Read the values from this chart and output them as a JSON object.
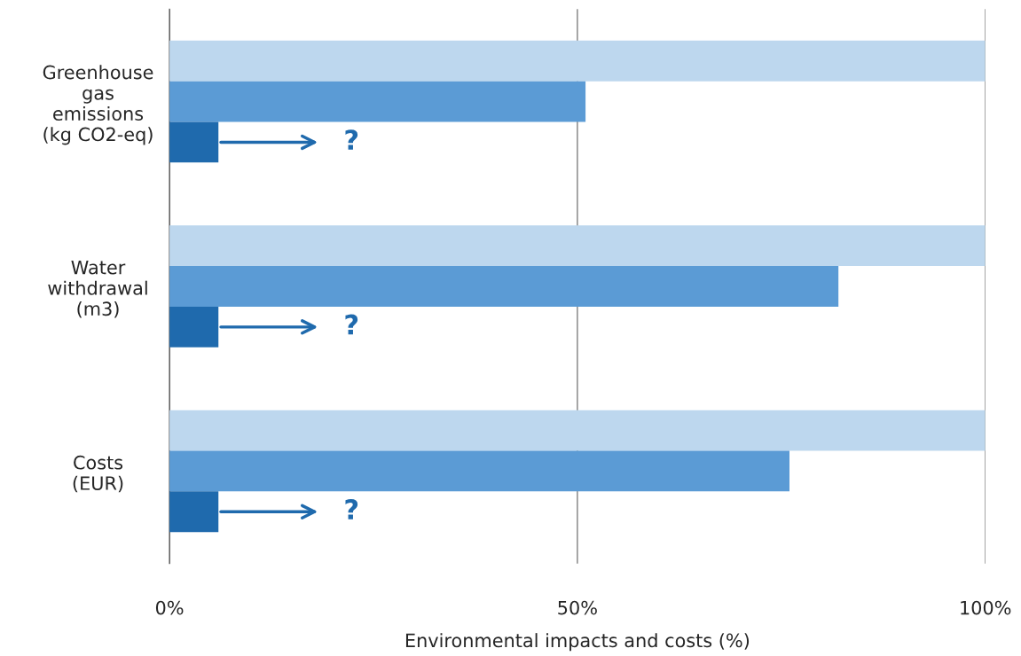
{
  "chart_data": {
    "type": "bar",
    "orientation": "horizontal",
    "xlabel": "Environmental impacts and costs (%)",
    "categories": [
      "Greenhouse\ngas\nemissions\n(kg CO2-eq)",
      "Water\nwithdrawal\n(m3)",
      "Costs\n(EUR)"
    ],
    "series": [
      {
        "color": "#bdd7ee",
        "values": [
          100,
          100,
          100
        ]
      },
      {
        "color": "#5b9bd5",
        "values": [
          51,
          82,
          76
        ]
      },
      {
        "color": "#1f6aad",
        "values": [
          6,
          6,
          6
        ]
      }
    ],
    "xlim": [
      0,
      100
    ],
    "xticks": [
      {
        "value": 0,
        "label": "0%"
      },
      {
        "value": 50,
        "label": "50%"
      },
      {
        "value": 100,
        "label": "100%"
      }
    ],
    "grid": "x",
    "legend": false,
    "annotations": [
      "?",
      "?",
      "?"
    ]
  }
}
